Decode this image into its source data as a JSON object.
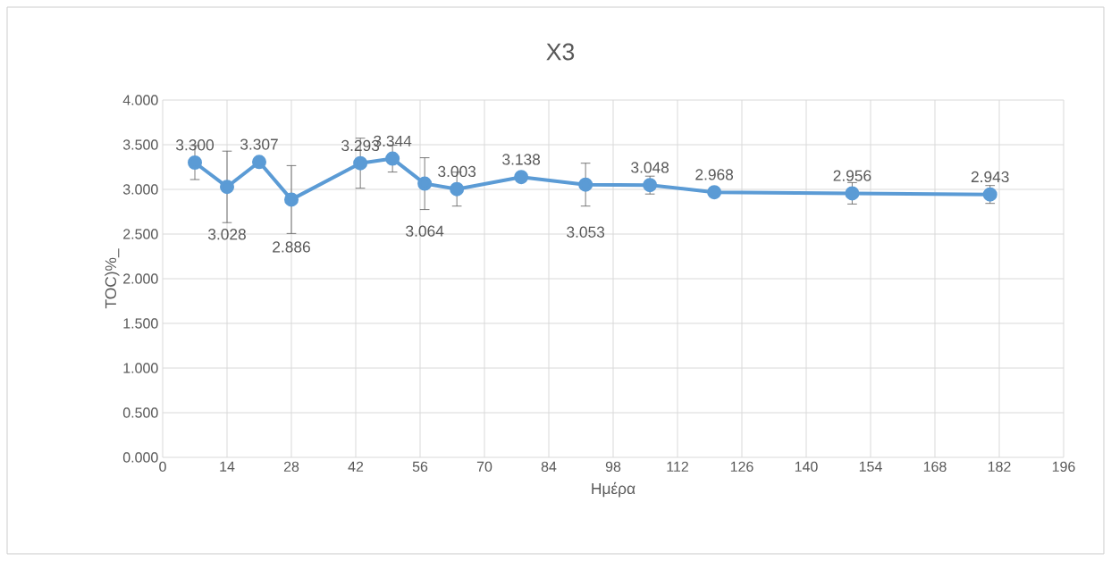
{
  "chart_data": {
    "type": "line",
    "title": "X3",
    "xlabel": "Ημέρα",
    "ylabel": "TOC)%_",
    "x": [
      7,
      14,
      21,
      28,
      43,
      50,
      57,
      64,
      78,
      92,
      106,
      120,
      150,
      180
    ],
    "values": [
      3.3,
      3.028,
      3.307,
      2.886,
      3.293,
      3.344,
      3.064,
      3.003,
      3.138,
      3.053,
      3.048,
      2.968,
      2.956,
      2.943
    ],
    "errors": [
      0.19,
      0.4,
      null,
      0.38,
      0.28,
      0.15,
      0.29,
      0.19,
      null,
      0.24,
      0.1,
      null,
      0.12,
      0.1
    ],
    "value_labels": [
      "3.300",
      "3.028",
      "3.307",
      "2.886",
      "3.293",
      "3.344",
      "3.064",
      "3.003",
      "3.138",
      "3.053",
      "3.048",
      "2.968",
      "2.956",
      "2.943"
    ],
    "color": "#5b9bd5",
    "marker": "circle",
    "line_style": "solid",
    "grid": true,
    "xlim": [
      0,
      196
    ],
    "xticks": [
      0,
      14,
      28,
      42,
      56,
      70,
      84,
      98,
      112,
      126,
      140,
      154,
      168,
      182,
      196
    ],
    "ylim": [
      0,
      4
    ],
    "yticks": [
      {
        "value": 0,
        "label": "0.000"
      },
      {
        "value": 0.5,
        "label": "0.500"
      },
      {
        "value": 1,
        "label": "1.000"
      },
      {
        "value": 1.5,
        "label": "1.500"
      },
      {
        "value": 2,
        "label": "2.000"
      },
      {
        "value": 2.5,
        "label": "2.500"
      },
      {
        "value": 3,
        "label": "3.000"
      },
      {
        "value": 3.5,
        "label": "3.500"
      },
      {
        "value": 4,
        "label": "4.000"
      }
    ]
  }
}
